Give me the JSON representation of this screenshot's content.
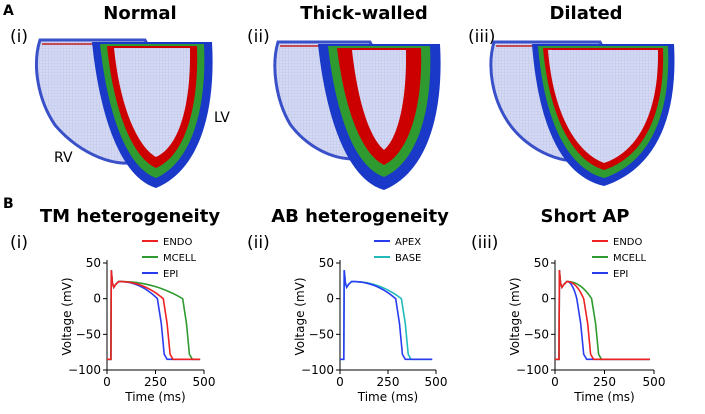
{
  "panel_a": {
    "label": "A",
    "hearts": [
      {
        "roman": "(i)",
        "title": "Normal",
        "lv_label": "LV",
        "rv_label": "RV"
      },
      {
        "roman": "(ii)",
        "title": "Thick-walled"
      },
      {
        "roman": "(iii)",
        "title": "Dilated"
      }
    ],
    "layer_colors": {
      "endo": "#cc0000",
      "mid": "#2f9a2f",
      "epi": "#1a39c8",
      "cavity": "#c9cff0"
    }
  },
  "panel_b": {
    "label": "B",
    "plots": [
      {
        "roman": "(i)",
        "title": "TM heterogeneity"
      },
      {
        "roman": "(ii)",
        "title": "AB heterogeneity"
      },
      {
        "roman": "(iii)",
        "title": "Short AP"
      }
    ]
  },
  "chart_data": [
    {
      "type": "line",
      "title": "TM heterogeneity",
      "xlabel": "Time (ms)",
      "ylabel": "Voltage (mV)",
      "xlim": [
        0,
        500
      ],
      "ylim": [
        -100,
        50
      ],
      "xticks": [
        "0",
        "250",
        "500"
      ],
      "yticks": [
        "50",
        "0",
        "−50",
        "−100"
      ],
      "legend_position": "top-right",
      "series": [
        {
          "name": "ENDO",
          "color": "#ee2222",
          "apd": 330
        },
        {
          "name": "MCELL",
          "color": "#2f9a2f",
          "apd": 430
        },
        {
          "name": "EPI",
          "color": "#2a3cf0",
          "apd": 300
        }
      ]
    },
    {
      "type": "line",
      "title": "AB heterogeneity",
      "xlabel": "Time (ms)",
      "ylabel": "Voltage (mV)",
      "xlim": [
        0,
        500
      ],
      "ylim": [
        -100,
        50
      ],
      "xticks": [
        "0",
        "250",
        "500"
      ],
      "yticks": [
        "50",
        "0",
        "−50",
        "−100"
      ],
      "legend_position": "top-right",
      "series": [
        {
          "name": "APEX",
          "color": "#2a3cf0",
          "apd": 330
        },
        {
          "name": "BASE",
          "color": "#22bbbb",
          "apd": 360
        }
      ]
    },
    {
      "type": "line",
      "title": "Short AP",
      "xlabel": "Time (ms)",
      "ylabel": "Voltage (mV)",
      "xlim": [
        0,
        500
      ],
      "ylim": [
        -100,
        50
      ],
      "xticks": [
        "0",
        "250",
        "500"
      ],
      "yticks": [
        "50",
        "0",
        "−50",
        "−100"
      ],
      "legend_position": "top-right",
      "series": [
        {
          "name": "ENDO",
          "color": "#ee2222",
          "apd": 185
        },
        {
          "name": "MCELL",
          "color": "#2f9a2f",
          "apd": 225
        },
        {
          "name": "EPI",
          "color": "#2a3cf0",
          "apd": 150
        }
      ]
    }
  ]
}
